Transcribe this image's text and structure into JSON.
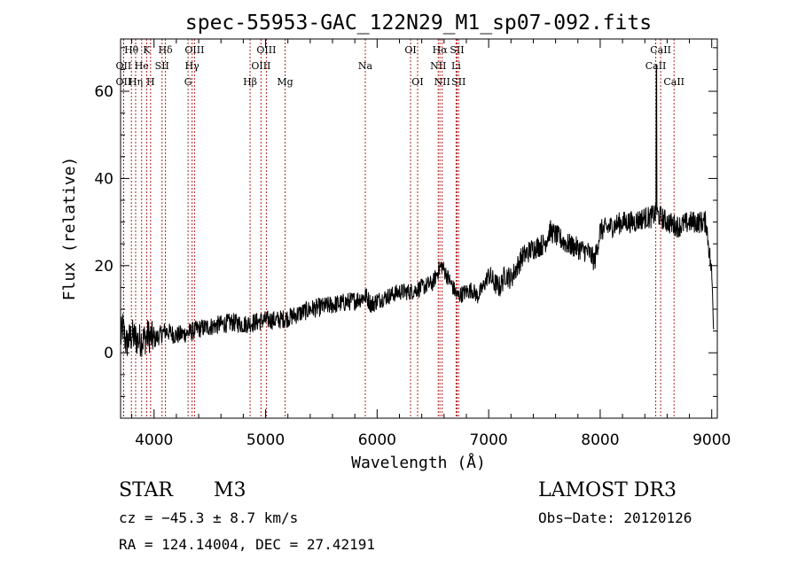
{
  "chart_data": {
    "type": "line",
    "title": "spec-55953-GAC_122N29_M1_sp07-092.fits",
    "xlabel": "Wavelength (Å)",
    "ylabel": "Flux (relative)",
    "xlim": [
      3700,
      9050
    ],
    "ylim": [
      -15,
      72
    ],
    "xticks": [
      4000,
      5000,
      6000,
      7000,
      8000,
      9000
    ],
    "yticks": [
      0,
      20,
      40,
      60
    ],
    "line_color": "#000000",
    "marker_color": "#b22222",
    "spectrum_anchors": [
      [
        3700,
        3
      ],
      [
        3720,
        6
      ],
      [
        3750,
        2
      ],
      [
        3800,
        4
      ],
      [
        3850,
        3
      ],
      [
        3900,
        3
      ],
      [
        3950,
        4
      ],
      [
        4000,
        3
      ],
      [
        4050,
        4
      ],
      [
        4100,
        5
      ],
      [
        4200,
        4
      ],
      [
        4300,
        4.5
      ],
      [
        4400,
        5.5
      ],
      [
        4500,
        6
      ],
      [
        4600,
        6.5
      ],
      [
        4700,
        7
      ],
      [
        4800,
        6.5
      ],
      [
        4900,
        7
      ],
      [
        5000,
        7.5
      ],
      [
        5100,
        7.5
      ],
      [
        5200,
        8
      ],
      [
        5300,
        9
      ],
      [
        5400,
        10
      ],
      [
        5500,
        10.5
      ],
      [
        5600,
        11
      ],
      [
        5700,
        11.5
      ],
      [
        5800,
        12
      ],
      [
        5900,
        13
      ],
      [
        5950,
        11
      ],
      [
        6000,
        12
      ],
      [
        6100,
        13
      ],
      [
        6200,
        14
      ],
      [
        6300,
        14
      ],
      [
        6400,
        15
      ],
      [
        6500,
        16
      ],
      [
        6550,
        19
      ],
      [
        6580,
        20
      ],
      [
        6620,
        18
      ],
      [
        6680,
        15
      ],
      [
        6720,
        13
      ],
      [
        6800,
        14
      ],
      [
        6850,
        14.5
      ],
      [
        6900,
        13
      ],
      [
        6950,
        15
      ],
      [
        7000,
        18
      ],
      [
        7050,
        16
      ],
      [
        7100,
        15
      ],
      [
        7150,
        18
      ],
      [
        7200,
        17
      ],
      [
        7300,
        22
      ],
      [
        7400,
        24
      ],
      [
        7500,
        25
      ],
      [
        7550,
        28
      ],
      [
        7600,
        27
      ],
      [
        7700,
        25
      ],
      [
        7800,
        24
      ],
      [
        7900,
        23
      ],
      [
        7950,
        21
      ],
      [
        8000,
        28
      ],
      [
        8100,
        29
      ],
      [
        8200,
        30
      ],
      [
        8300,
        30
      ],
      [
        8400,
        31
      ],
      [
        8450,
        31
      ],
      [
        8500,
        32
      ],
      [
        8600,
        30
      ],
      [
        8700,
        29
      ],
      [
        8800,
        30
      ],
      [
        8900,
        30
      ],
      [
        8950,
        30
      ],
      [
        9000,
        18
      ],
      [
        9020,
        5
      ]
    ],
    "spike": {
      "x": 8504,
      "y": 66
    },
    "spectral_lines": [
      {
        "label": "Hθ",
        "x": 3797,
        "row": 0
      },
      {
        "label": "OII",
        "x": 3727,
        "row": 1
      },
      {
        "label": "OII",
        "x": 3727,
        "row": 2
      },
      {
        "label": "K",
        "x": 3934,
        "row": 0
      },
      {
        "label": "He",
        "x": 3889,
        "row": 1
      },
      {
        "label": "Hη",
        "x": 3835,
        "row": 2
      },
      {
        "label": "Hδ",
        "x": 4102,
        "row": 0
      },
      {
        "label": "SII",
        "x": 4072,
        "row": 1
      },
      {
        "label": "H",
        "x": 3969,
        "row": 2
      },
      {
        "label": "OIII",
        "x": 4363,
        "row": 0
      },
      {
        "label": "Hγ",
        "x": 4341,
        "row": 1
      },
      {
        "label": "G",
        "x": 4305,
        "row": 2
      },
      {
        "label": "OIII",
        "x": 5007,
        "row": 0
      },
      {
        "label": "OIII",
        "x": 4959,
        "row": 1
      },
      {
        "label": "Hβ",
        "x": 4861,
        "row": 2
      },
      {
        "label": "Mg",
        "x": 5175,
        "row": 2
      },
      {
        "label": "Na",
        "x": 5894,
        "row": 1
      },
      {
        "label": "OI",
        "x": 6300,
        "row": 0
      },
      {
        "label": "OI",
        "x": 6363,
        "row": 2
      },
      {
        "label": "Hα",
        "x": 6563,
        "row": 0
      },
      {
        "label": "NII",
        "x": 6548,
        "row": 1
      },
      {
        "label": "NII",
        "x": 6583,
        "row": 2
      },
      {
        "label": "SII",
        "x": 6717,
        "row": 0
      },
      {
        "label": "Li",
        "x": 6708,
        "row": 1
      },
      {
        "label": "SII",
        "x": 6731,
        "row": 2
      },
      {
        "label": "CaII",
        "x": 8542,
        "row": 0
      },
      {
        "label": "CaII",
        "x": 8498,
        "row": 1
      },
      {
        "label": "CaII",
        "x": 8662,
        "row": 2
      }
    ]
  },
  "info": {
    "class": "STAR",
    "subclass": "M3",
    "survey": "LAMOST DR3",
    "cz": "cz = −45.3 ± 8.7 km/s",
    "obs_date": "Obs−Date: 20120126",
    "coords": "RA = 124.14004, DEC =  27.42191"
  }
}
